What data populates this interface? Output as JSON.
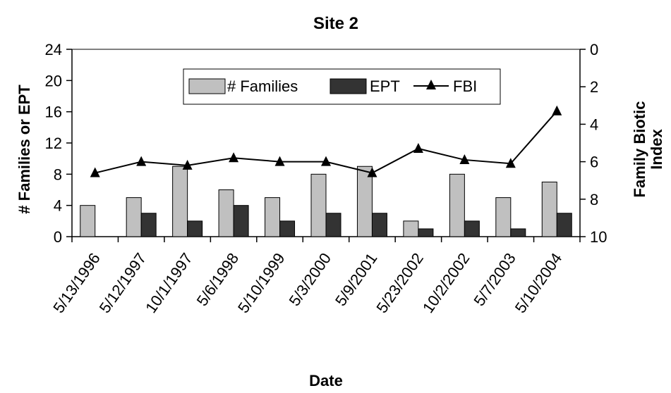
{
  "chart_data": {
    "type": "bar",
    "title": "Site 2",
    "xlabel": "Date",
    "ylabel": "# Families or EPT",
    "y2label_line1": "Family Biotic",
    "y2label_line2": "Index",
    "ylim": [
      0,
      24
    ],
    "y_ticks": [
      "0",
      "4",
      "8",
      "12",
      "16",
      "20",
      "24"
    ],
    "y2lim": [
      10,
      0
    ],
    "y2_reversed": true,
    "y2_ticks": [
      "0",
      "2",
      "4",
      "6",
      "8",
      "10"
    ],
    "grid": false,
    "legend_position": "top-center",
    "categories": [
      "5/13/1996",
      "5/12/1997",
      "10/1/1997",
      "5/6/1998",
      "5/10/1999",
      "5/3/2000",
      "5/9/2001",
      "5/23/2002",
      "10/2/2002",
      "5/7/2003",
      "5/10/2004"
    ],
    "series": [
      {
        "name": "# Families",
        "kind": "bar",
        "color": "#c0c0c0",
        "values": [
          4,
          5,
          9,
          6,
          5,
          8,
          9,
          2,
          8,
          5,
          7
        ]
      },
      {
        "name": "EPT",
        "kind": "bar",
        "color": "#333333",
        "values": [
          0,
          3,
          2,
          4,
          2,
          3,
          3,
          1,
          2,
          1,
          3
        ]
      },
      {
        "name": "FBI",
        "kind": "line",
        "axis": "right",
        "color": "#000000",
        "marker": "triangle",
        "values": [
          6.6,
          6.0,
          6.2,
          5.8,
          6.0,
          6.0,
          6.6,
          5.3,
          5.9,
          6.1,
          3.3
        ]
      }
    ]
  }
}
